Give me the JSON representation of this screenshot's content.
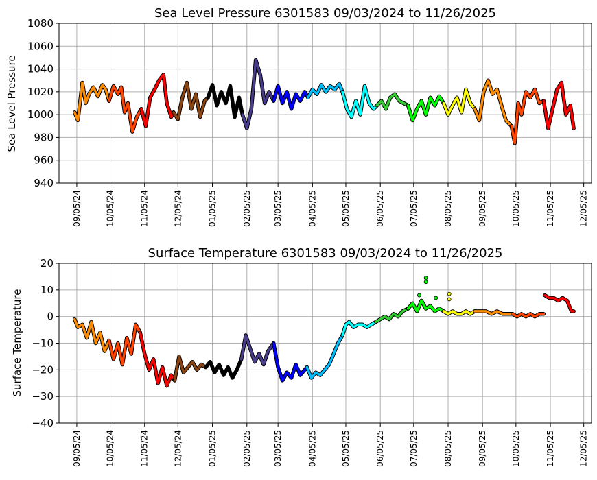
{
  "chart_data": [
    {
      "type": "line",
      "title": "Sea Level Pressure 6301583  09/03/2024 to 11/26/2025",
      "ylabel": "Sea Level Pressure",
      "xlabel": "",
      "ylim": [
        940,
        1080
      ],
      "yticks": [
        "940",
        "960",
        "980",
        "1000",
        "1020",
        "1040",
        "1060",
        "1080"
      ],
      "xlim": [
        "2024-08-20",
        "2025-12-12"
      ],
      "xticks": [
        "09/05/24",
        "10/05/24",
        "11/05/24",
        "12/05/24",
        "01/05/25",
        "02/05/25",
        "03/05/25",
        "04/05/25",
        "05/05/25",
        "06/05/25",
        "07/05/25",
        "08/05/25",
        "09/05/25",
        "10/05/25",
        "11/05/25",
        "12/05/25"
      ],
      "grid": true,
      "series": [
        {
          "color": "#ff8c00",
          "x": [
            "2024-09-03",
            "2024-09-06",
            "2024-09-10",
            "2024-09-13",
            "2024-09-16",
            "2024-09-20",
            "2024-09-24",
            "2024-09-28",
            "2024-10-01",
            "2024-10-04"
          ],
          "y": [
            1002,
            995,
            1028,
            1010,
            1018,
            1024,
            1016,
            1026,
            1022,
            1012
          ]
        },
        {
          "color": "#ff4500",
          "x": [
            "2024-10-04",
            "2024-10-08",
            "2024-10-12",
            "2024-10-15",
            "2024-10-18",
            "2024-10-21",
            "2024-10-25",
            "2024-10-29",
            "2024-11-02"
          ],
          "y": [
            1012,
            1025,
            1018,
            1024,
            1002,
            1010,
            985,
            998,
            1005
          ]
        },
        {
          "color": "#ff0000",
          "x": [
            "2024-11-02",
            "2024-11-06",
            "2024-11-10",
            "2024-11-14",
            "2024-11-18",
            "2024-11-22",
            "2024-11-25",
            "2024-11-29",
            "2024-12-01"
          ],
          "y": [
            1005,
            990,
            1015,
            1022,
            1030,
            1035,
            1010,
            998,
            1002
          ]
        },
        {
          "color": "#8b4513",
          "x": [
            "2024-12-01",
            "2024-12-05",
            "2024-12-09",
            "2024-12-13",
            "2024-12-17",
            "2024-12-21",
            "2024-12-25",
            "2024-12-29",
            "2025-01-01"
          ],
          "y": [
            1002,
            996,
            1015,
            1028,
            1005,
            1018,
            998,
            1012,
            1015
          ]
        },
        {
          "color": "#000000",
          "x": [
            "2025-01-01",
            "2025-01-05",
            "2025-01-09",
            "2025-01-13",
            "2025-01-17",
            "2025-01-21",
            "2025-01-25",
            "2025-01-29",
            "2025-02-01"
          ],
          "y": [
            1015,
            1026,
            1008,
            1020,
            1010,
            1025,
            998,
            1015,
            1000
          ]
        },
        {
          "color": "#483d8b",
          "x": [
            "2025-02-01",
            "2025-02-05",
            "2025-02-09",
            "2025-02-13",
            "2025-02-17",
            "2025-02-21",
            "2025-02-25",
            "2025-03-01"
          ],
          "y": [
            1000,
            988,
            1005,
            1048,
            1035,
            1010,
            1020,
            1012
          ]
        },
        {
          "color": "#0000ff",
          "x": [
            "2025-03-01",
            "2025-03-05",
            "2025-03-09",
            "2025-03-13",
            "2025-03-17",
            "2025-03-21",
            "2025-03-25",
            "2025-03-29",
            "2025-04-01"
          ],
          "y": [
            1012,
            1025,
            1010,
            1020,
            1005,
            1018,
            1012,
            1020,
            1015
          ]
        },
        {
          "color": "#00bfff",
          "x": [
            "2025-04-01",
            "2025-04-05",
            "2025-04-09",
            "2025-04-13",
            "2025-04-17",
            "2025-04-21",
            "2025-04-25",
            "2025-04-29",
            "2025-05-02"
          ],
          "y": [
            1015,
            1022,
            1018,
            1026,
            1020,
            1025,
            1022,
            1027,
            1020
          ]
        },
        {
          "color": "#00ffff",
          "x": [
            "2025-05-02",
            "2025-05-06",
            "2025-05-10",
            "2025-05-14",
            "2025-05-18",
            "2025-05-22",
            "2025-05-26",
            "2025-05-30",
            "2025-06-02"
          ],
          "y": [
            1020,
            1005,
            998,
            1012,
            1000,
            1025,
            1010,
            1005,
            1008
          ]
        },
        {
          "color": "#32cd32",
          "x": [
            "2025-06-02",
            "2025-06-06",
            "2025-06-10",
            "2025-06-14",
            "2025-06-18",
            "2025-06-22",
            "2025-06-26",
            "2025-06-30"
          ],
          "y": [
            1008,
            1012,
            1005,
            1015,
            1018,
            1012,
            1010,
            1008
          ]
        },
        {
          "color": "#00ff00",
          "x": [
            "2025-06-30",
            "2025-07-04",
            "2025-07-08",
            "2025-07-12",
            "2025-07-16",
            "2025-07-20",
            "2025-07-24",
            "2025-07-28",
            "2025-08-01"
          ],
          "y": [
            1008,
            995,
            1005,
            1012,
            1000,
            1015,
            1008,
            1016,
            1010
          ]
        },
        {
          "color": "#ffff00",
          "x": [
            "2025-08-01",
            "2025-08-05",
            "2025-08-09",
            "2025-08-13",
            "2025-08-17",
            "2025-08-21",
            "2025-08-25",
            "2025-08-29"
          ],
          "y": [
            1010,
            1000,
            1008,
            1015,
            1002,
            1022,
            1010,
            1005
          ]
        },
        {
          "color": "#ff8c00",
          "x": [
            "2025-08-29",
            "2025-09-02",
            "2025-09-06",
            "2025-09-10",
            "2025-09-14",
            "2025-09-18",
            "2025-09-22",
            "2025-09-26",
            "2025-10-01"
          ],
          "y": [
            1005,
            995,
            1020,
            1030,
            1018,
            1022,
            1008,
            995,
            990
          ]
        },
        {
          "color": "#ff4500",
          "x": [
            "2025-10-01",
            "2025-10-04",
            "2025-10-07",
            "2025-10-10",
            "2025-10-14",
            "2025-10-18",
            "2025-10-22",
            "2025-10-26",
            "2025-10-30"
          ],
          "y": [
            990,
            975,
            1010,
            1000,
            1020,
            1015,
            1022,
            1010,
            1012
          ]
        },
        {
          "color": "#ff0000",
          "x": [
            "2025-10-30",
            "2025-11-03",
            "2025-11-07",
            "2025-11-11",
            "2025-11-15",
            "2025-11-19",
            "2025-11-23",
            "2025-11-26"
          ],
          "y": [
            1012,
            988,
            1005,
            1022,
            1028,
            1000,
            1008,
            988
          ]
        }
      ]
    },
    {
      "type": "line",
      "title": "Surface Temperature 6301583  09/03/2024 to 11/26/2025",
      "ylabel": "Surface Temperature",
      "xlabel": "",
      "ylim": [
        -40,
        20
      ],
      "yticks": [
        "−40",
        "−30",
        "−20",
        "−10",
        "0",
        "10",
        "20"
      ],
      "xlim": [
        "2024-08-20",
        "2025-12-12"
      ],
      "xticks": [
        "09/05/24",
        "10/05/24",
        "11/05/24",
        "12/05/24",
        "01/05/25",
        "02/05/25",
        "03/05/25",
        "04/05/25",
        "05/05/25",
        "06/05/25",
        "07/05/25",
        "08/05/25",
        "09/05/25",
        "10/05/25",
        "11/05/25",
        "12/05/25"
      ],
      "grid": true,
      "series": [
        {
          "color": "#ff8c00",
          "x": [
            "2024-09-03",
            "2024-09-06",
            "2024-09-10",
            "2024-09-14",
            "2024-09-18",
            "2024-09-22",
            "2024-09-26",
            "2024-09-30",
            "2024-10-04"
          ],
          "y": [
            -1,
            -4,
            -3,
            -8,
            -2,
            -10,
            -6,
            -13,
            -9
          ]
        },
        {
          "color": "#ff4500",
          "x": [
            "2024-10-04",
            "2024-10-08",
            "2024-10-12",
            "2024-10-16",
            "2024-10-20",
            "2024-10-24",
            "2024-10-28",
            "2024-11-01"
          ],
          "y": [
            -9,
            -16,
            -10,
            -18,
            -8,
            -14,
            -3,
            -6
          ]
        },
        {
          "color": "#ff0000",
          "x": [
            "2024-11-01",
            "2024-11-05",
            "2024-11-09",
            "2024-11-13",
            "2024-11-17",
            "2024-11-21",
            "2024-11-25",
            "2024-11-29",
            "2024-12-02"
          ],
          "y": [
            -6,
            -14,
            -20,
            -16,
            -25,
            -19,
            -26,
            -22,
            -24
          ]
        },
        {
          "color": "#8b4513",
          "x": [
            "2024-12-02",
            "2024-12-06",
            "2024-12-10",
            "2024-12-14",
            "2024-12-18",
            "2024-12-22",
            "2024-12-26",
            "2024-12-30"
          ],
          "y": [
            -24,
            -15,
            -21,
            -19,
            -17,
            -20,
            -18,
            -19
          ]
        },
        {
          "color": "#000000",
          "x": [
            "2024-12-30",
            "2025-01-03",
            "2025-01-07",
            "2025-01-11",
            "2025-01-15",
            "2025-01-19",
            "2025-01-23",
            "2025-01-27",
            "2025-01-31"
          ],
          "y": [
            -19,
            -17,
            -21,
            -18,
            -22,
            -19,
            -23,
            -20,
            -16
          ]
        },
        {
          "color": "#483d8b",
          "x": [
            "2025-01-31",
            "2025-02-04",
            "2025-02-08",
            "2025-02-12",
            "2025-02-16",
            "2025-02-20",
            "2025-02-24",
            "2025-03-01"
          ],
          "y": [
            -16,
            -7,
            -12,
            -17,
            -14,
            -18,
            -13,
            -10
          ]
        },
        {
          "color": "#0000ff",
          "x": [
            "2025-03-01",
            "2025-03-05",
            "2025-03-09",
            "2025-03-13",
            "2025-03-17",
            "2025-03-21",
            "2025-03-25",
            "2025-03-31"
          ],
          "y": [
            -10,
            -19,
            -24,
            -21,
            -23,
            -18,
            -22,
            -19
          ]
        },
        {
          "color": "#00bfff",
          "x": [
            "2025-03-31",
            "2025-04-04",
            "2025-04-08",
            "2025-04-12",
            "2025-04-16",
            "2025-04-20",
            "2025-04-24",
            "2025-04-28",
            "2025-05-02"
          ],
          "y": [
            -19,
            -23,
            -21,
            -22,
            -20,
            -18,
            -14,
            -10,
            -7
          ]
        },
        {
          "color": "#00ffff",
          "x": [
            "2025-05-02",
            "2025-05-05",
            "2025-05-08",
            "2025-05-12",
            "2025-05-16",
            "2025-05-20",
            "2025-05-24",
            "2025-05-28",
            "2025-06-01"
          ],
          "y": [
            -7,
            -3,
            -2,
            -4,
            -3,
            -3,
            -4,
            -3,
            -2
          ]
        },
        {
          "color": "#32cd32",
          "x": [
            "2025-06-01",
            "2025-06-05",
            "2025-06-09",
            "2025-06-13",
            "2025-06-17",
            "2025-06-21",
            "2025-06-25",
            "2025-06-30"
          ],
          "y": [
            -2,
            -1,
            0,
            -1,
            1,
            0,
            2,
            3
          ]
        },
        {
          "color": "#00ff00",
          "x": [
            "2025-06-30",
            "2025-07-04",
            "2025-07-08",
            "2025-07-12",
            "2025-07-16",
            "2025-07-20",
            "2025-07-24",
            "2025-07-28",
            "2025-08-01"
          ],
          "y": [
            3,
            5,
            2,
            6,
            3,
            4,
            2,
            3,
            2
          ]
        },
        {
          "color": "#ffff00",
          "x": [
            "2025-08-01",
            "2025-08-05",
            "2025-08-09",
            "2025-08-13",
            "2025-08-17",
            "2025-08-21",
            "2025-08-25",
            "2025-08-29"
          ],
          "y": [
            2,
            1,
            2,
            1,
            1,
            2,
            1,
            2
          ]
        },
        {
          "color": "#ff8c00",
          "x": [
            "2025-08-29",
            "2025-09-03",
            "2025-09-08",
            "2025-09-13",
            "2025-09-18",
            "2025-09-23",
            "2025-09-28",
            "2025-10-02"
          ],
          "y": [
            2,
            2,
            2,
            1,
            2,
            1,
            1,
            1
          ]
        },
        {
          "color": "#ff4500",
          "x": [
            "2025-10-02",
            "2025-10-06",
            "2025-10-10",
            "2025-10-14",
            "2025-10-18",
            "2025-10-22",
            "2025-10-26",
            "2025-10-30"
          ],
          "y": [
            1,
            0,
            1,
            0,
            1,
            0,
            1,
            1
          ]
        },
        {
          "color": "#ff0000",
          "x": [
            "2025-10-31",
            "2025-11-04",
            "2025-11-08",
            "2025-11-12",
            "2025-11-16",
            "2025-11-20",
            "2025-11-24",
            "2025-11-26"
          ],
          "y": [
            8,
            7,
            7,
            6,
            7,
            6,
            2,
            2
          ]
        }
      ],
      "outliers": [
        {
          "x": "2025-07-10",
          "y": 8,
          "color": "#00ff00"
        },
        {
          "x": "2025-07-16",
          "y": 14.5,
          "color": "#00ff00"
        },
        {
          "x": "2025-07-16",
          "y": 13,
          "color": "#00ff00"
        },
        {
          "x": "2025-07-25",
          "y": 7,
          "color": "#00ff00"
        },
        {
          "x": "2025-08-06",
          "y": 8.5,
          "color": "#ffff00"
        },
        {
          "x": "2025-08-06",
          "y": 6.5,
          "color": "#ffff00"
        }
      ]
    }
  ]
}
